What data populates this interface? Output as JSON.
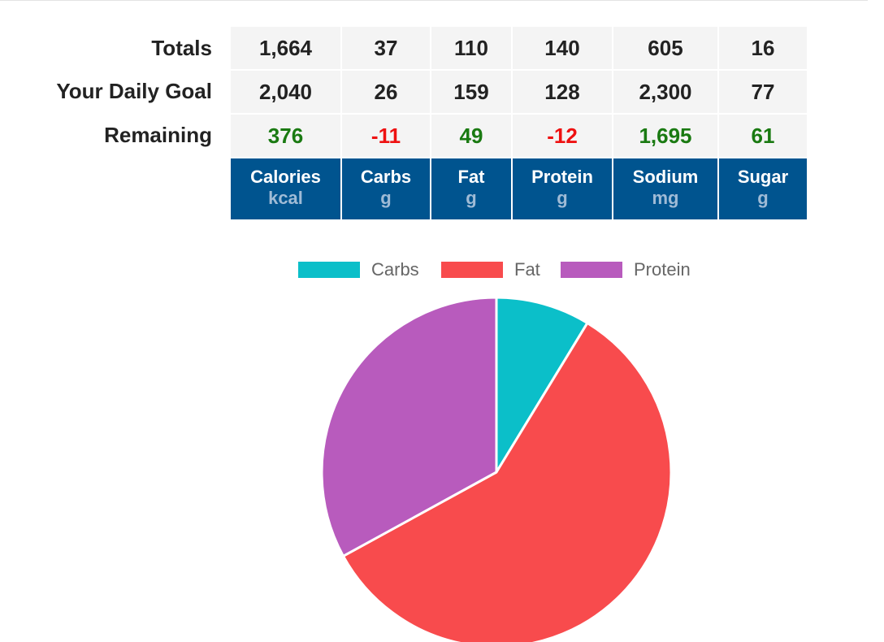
{
  "table": {
    "row_labels": [
      "Totals",
      "Your Daily Goal",
      "Remaining"
    ],
    "columns": [
      {
        "name": "Calories",
        "unit": "kcal",
        "total": "1,664",
        "goal": "2,040",
        "remaining": "376",
        "remaining_status": "pos"
      },
      {
        "name": "Carbs",
        "unit": "g",
        "total": "37",
        "goal": "26",
        "remaining": "-11",
        "remaining_status": "neg"
      },
      {
        "name": "Fat",
        "unit": "g",
        "total": "110",
        "goal": "159",
        "remaining": "49",
        "remaining_status": "pos"
      },
      {
        "name": "Protein",
        "unit": "g",
        "total": "140",
        "goal": "128",
        "remaining": "-12",
        "remaining_status": "neg"
      },
      {
        "name": "Sodium",
        "unit": "mg",
        "total": "605",
        "goal": "2,300",
        "remaining": "1,695",
        "remaining_status": "pos"
      },
      {
        "name": "Sugar",
        "unit": "g",
        "total": "16",
        "goal": "77",
        "remaining": "61",
        "remaining_status": "pos"
      }
    ],
    "colors": {
      "header_bg": "#00548f",
      "positive": "#1a7a12",
      "negative": "#ee1111"
    }
  },
  "chart_data": {
    "type": "pie",
    "title": "",
    "legend_position": "top",
    "categories": [
      "Carbs",
      "Fat",
      "Protein"
    ],
    "values": [
      148,
      990,
      560
    ],
    "colors": [
      "#0bbfc9",
      "#f84b4d",
      "#b85bbd"
    ]
  }
}
